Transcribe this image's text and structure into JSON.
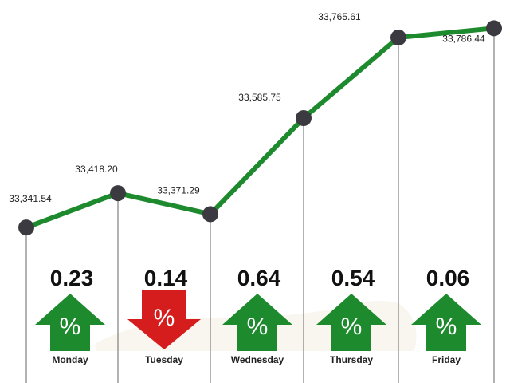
{
  "chart_data": {
    "type": "line",
    "x": [
      "",
      "",
      "",
      "",
      "",
      ""
    ],
    "values": [
      33341.54,
      33418.2,
      33371.29,
      33585.75,
      33765.61,
      33786.44
    ],
    "point_labels": [
      "33,341.54",
      "33,418.20",
      "33,371.29",
      "33,585.75",
      "33,765.61",
      "33,786.44"
    ],
    "days": [
      {
        "name": "Monday",
        "change": "0.23",
        "direction": "up",
        "symbol": "%"
      },
      {
        "name": "Tuesday",
        "change": "0.14",
        "direction": "down",
        "symbol": "%"
      },
      {
        "name": "Wednesday",
        "change": "0.64",
        "direction": "up",
        "symbol": "%"
      },
      {
        "name": "Thursday",
        "change": "0.54",
        "direction": "up",
        "symbol": "%"
      },
      {
        "name": "Friday",
        "change": "0.06",
        "direction": "up",
        "symbol": "%"
      }
    ],
    "legend": "none",
    "grid": "vertical-lines",
    "colors": {
      "line": "#1e8a2e",
      "marker": "#3a3a40",
      "up": "#1e8a2e",
      "down": "#d61d1d",
      "vline": "#666666"
    }
  }
}
